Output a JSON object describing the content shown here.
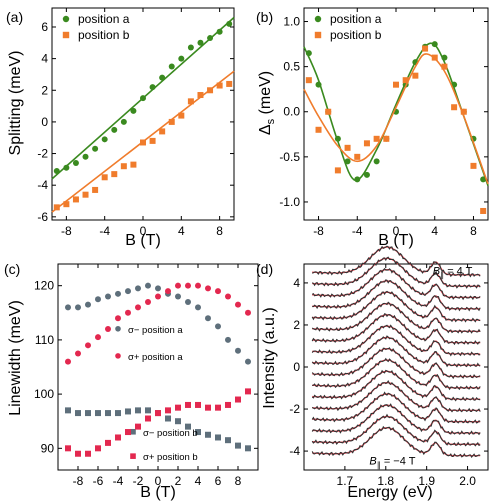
{
  "colors": {
    "green": "#3a8a1f",
    "orange": "#f07c2c",
    "gray": "#5e6f7b",
    "pink": "#e3284f",
    "red": "#e8434f",
    "dark": "#333333",
    "axis": "#000000"
  },
  "chart_data": [
    {
      "panel_label": "(a)",
      "type": "scatter",
      "xlabel": "B (T)",
      "ylabel": "Splitting (meV)",
      "xlim": [
        -9.5,
        9.5
      ],
      "ylim": [
        -6.2,
        7.2
      ],
      "xticks": [
        -8,
        -4,
        0,
        4,
        8
      ],
      "yticks": [
        -6,
        -4,
        -2,
        0,
        2,
        4,
        6
      ],
      "grid": false,
      "legend_position": "top-left",
      "series": [
        {
          "name": "position a",
          "color": "green",
          "marker": "circle",
          "x": [
            -9,
            -8,
            -7,
            -6,
            -5,
            -4,
            -3,
            -2,
            -1,
            0,
            1,
            2,
            3,
            4,
            5,
            6,
            7,
            8,
            9
          ],
          "y": [
            -3.1,
            -2.9,
            -2.6,
            -2.2,
            -1.7,
            -1.1,
            -0.5,
            0.0,
            0.7,
            1.5,
            2.2,
            2.8,
            3.5,
            4.0,
            4.7,
            5.0,
            5.3,
            5.7,
            6.2
          ],
          "fit": {
            "x": [
              -9.5,
              9.5
            ],
            "y": [
              -3.6,
              6.6
            ]
          }
        },
        {
          "name": "position b",
          "color": "orange",
          "marker": "square",
          "x": [
            -9,
            -8,
            -7,
            -6,
            -5,
            -4,
            -3,
            -2,
            -1,
            0,
            1,
            2,
            3,
            4,
            5,
            6,
            7,
            8,
            9
          ],
          "y": [
            -5.4,
            -5.2,
            -4.9,
            -4.6,
            -4.3,
            -3.5,
            -3.3,
            -2.8,
            -2.7,
            -1.3,
            -1.2,
            -0.6,
            0.0,
            0.4,
            1.3,
            1.7,
            2.0,
            2.3,
            2.4
          ],
          "fit": {
            "x": [
              -9.5,
              9.5
            ],
            "y": [
              -5.7,
              3.2
            ]
          }
        }
      ]
    },
    {
      "panel_label": "(b)",
      "type": "scatter",
      "xlabel": "B (T)",
      "ylabel": "Δs (meV)",
      "ylabel_main": "Δ",
      "ylabel_sub": "s",
      "ylabel_unit": " (meV)",
      "xlim": [
        -9.5,
        9.5
      ],
      "ylim": [
        -1.2,
        1.15
      ],
      "xticks": [
        -8,
        -4,
        0,
        4,
        8
      ],
      "yticks": [
        -1.0,
        -0.5,
        0.0,
        0.5,
        1.0
      ],
      "ytick_labels": [
        "-1.0",
        "-0.5",
        "0.0",
        "0.5",
        "1.0"
      ],
      "grid": false,
      "legend_position": "top-left",
      "series": [
        {
          "name": "position a",
          "color": "green",
          "marker": "circle",
          "x": [
            -9,
            -8,
            -7,
            -6,
            -5,
            -4,
            -3,
            -2,
            -1,
            0,
            1,
            2,
            3,
            4,
            5,
            6,
            7,
            8,
            9
          ],
          "y": [
            0.65,
            0.3,
            0.0,
            -0.3,
            -0.55,
            -0.75,
            -0.7,
            -0.55,
            -0.3,
            0.0,
            0.3,
            0.55,
            0.72,
            0.75,
            0.6,
            0.3,
            0.0,
            -0.3,
            -0.75
          ],
          "fit": {
            "x": [
              -9.5,
              -8,
              -6,
              -4.2,
              -2,
              0,
              2,
              3.6,
              5,
              7,
              9.5
            ],
            "y": [
              0.72,
              0.35,
              -0.33,
              -0.76,
              -0.42,
              0.08,
              0.55,
              0.76,
              0.55,
              -0.05,
              -0.82
            ]
          }
        },
        {
          "name": "position b",
          "color": "orange",
          "marker": "square",
          "x": [
            -9,
            -8,
            -7,
            -6,
            -5,
            -4,
            -3,
            -2,
            -1,
            0,
            1,
            2,
            3,
            4,
            5,
            6,
            7,
            8,
            9
          ],
          "y": [
            0.35,
            -0.2,
            0.0,
            -0.65,
            -0.4,
            -0.5,
            -0.35,
            -0.3,
            -0.3,
            0.3,
            0.35,
            0.4,
            0.7,
            0.6,
            0.5,
            0.05,
            0.0,
            -0.6,
            -1.1
          ],
          "fit": {
            "x": [
              -9.5,
              -8,
              -6,
              -4,
              -2,
              0,
              2,
              3.2,
              5,
              7,
              9.5
            ],
            "y": [
              0.25,
              -0.05,
              -0.38,
              -0.55,
              -0.38,
              0.05,
              0.5,
              0.64,
              0.45,
              -0.05,
              -0.8
            ]
          }
        }
      ]
    },
    {
      "panel_label": "(c)",
      "type": "scatter",
      "xlabel": "B (T)",
      "ylabel": "Linewidth (meV)",
      "xlim": [
        -10,
        10
      ],
      "ylim": [
        86,
        124
      ],
      "xticks": [
        -8,
        -6,
        -4,
        -2,
        0,
        2,
        4,
        6,
        8
      ],
      "yticks": [
        90,
        100,
        110,
        120
      ],
      "grid": false,
      "series": [
        {
          "name": "σ− position a",
          "color": "gray",
          "marker": "circle",
          "x": [
            -9,
            -8,
            -7,
            -6,
            -5,
            -4,
            -3,
            -2,
            -1,
            0,
            1,
            2,
            3,
            4,
            5,
            6,
            7,
            8,
            9
          ],
          "y": [
            116,
            116,
            116.5,
            117.5,
            118,
            118.5,
            119,
            119.5,
            120,
            119.5,
            118.5,
            118,
            117,
            116,
            114,
            112.5,
            110,
            108,
            106
          ],
          "legend": {
            "text": "σ− position a",
            "x": -4,
            "y": 111.5
          }
        },
        {
          "name": "σ+ position a",
          "color": "pink",
          "marker": "circle",
          "x": [
            -9,
            -8,
            -7,
            -6,
            -5,
            -4,
            -3,
            -2,
            -1,
            0,
            1,
            2,
            3,
            4,
            5,
            6,
            7,
            8,
            9
          ],
          "y": [
            106,
            107.5,
            109,
            110.5,
            112,
            114,
            115,
            116,
            117,
            118,
            119,
            120,
            120,
            120,
            119.5,
            119,
            118,
            116.5,
            115
          ],
          "legend": {
            "text": "σ+ position a",
            "x": -4,
            "y": 106.5
          }
        },
        {
          "name": "σ− position b",
          "color": "gray",
          "marker": "square",
          "x": [
            -9,
            -8,
            -7,
            -6,
            -5,
            -4,
            -3,
            -2,
            -1,
            0,
            1,
            2,
            3,
            4,
            5,
            6,
            7,
            8,
            9
          ],
          "y": [
            97,
            96.5,
            96.5,
            96.5,
            96.5,
            96.5,
            96.8,
            97,
            97,
            96.5,
            95.5,
            95,
            94,
            93,
            92.5,
            92,
            91.5,
            90.5,
            90
          ],
          "legend": {
            "text": "σ− position b",
            "x": -2.5,
            "y": 92.5
          }
        },
        {
          "name": "σ+ position b",
          "color": "pink",
          "marker": "square",
          "x": [
            -9,
            -8,
            -7,
            -6,
            -5,
            -4,
            -3,
            -2,
            -1,
            0,
            1,
            2,
            3,
            4,
            5,
            6,
            7,
            8,
            9
          ],
          "y": [
            90,
            89,
            89,
            90,
            91,
            92,
            93,
            94,
            95.5,
            96.5,
            97,
            97.5,
            98,
            98,
            97.5,
            97.5,
            98,
            99,
            100.5
          ],
          "legend": {
            "text": "σ+ position b",
            "x": -2.5,
            "y": 88
          }
        }
      ]
    },
    {
      "panel_label": "(d)",
      "type": "line",
      "xlabel": "Energy (eV)",
      "ylabel": "Intensity (a.u.)",
      "xlim": [
        1.6,
        2.05
      ],
      "ylim": [
        -4.9,
        4.9
      ],
      "xticks": [
        1.7,
        1.8,
        1.9,
        2.0
      ],
      "xtick_labels": [
        "1.7",
        "1.8",
        "1.9",
        "2.0"
      ],
      "yticks": [
        -4,
        -2,
        0,
        2,
        4
      ],
      "grid": false,
      "series_count": 17,
      "offset_start": -4.3,
      "offset_step": 0.5375,
      "fit_color": "red",
      "data_color": "dark",
      "annotations": [
        {
          "main": "B",
          "sub": "∥",
          "rest": " = 4 T",
          "x": 1.915,
          "y": 4.4
        },
        {
          "main": "B",
          "sub": "∥",
          "rest": " = −4 T",
          "x": 1.76,
          "y": -4.65
        }
      ]
    }
  ]
}
